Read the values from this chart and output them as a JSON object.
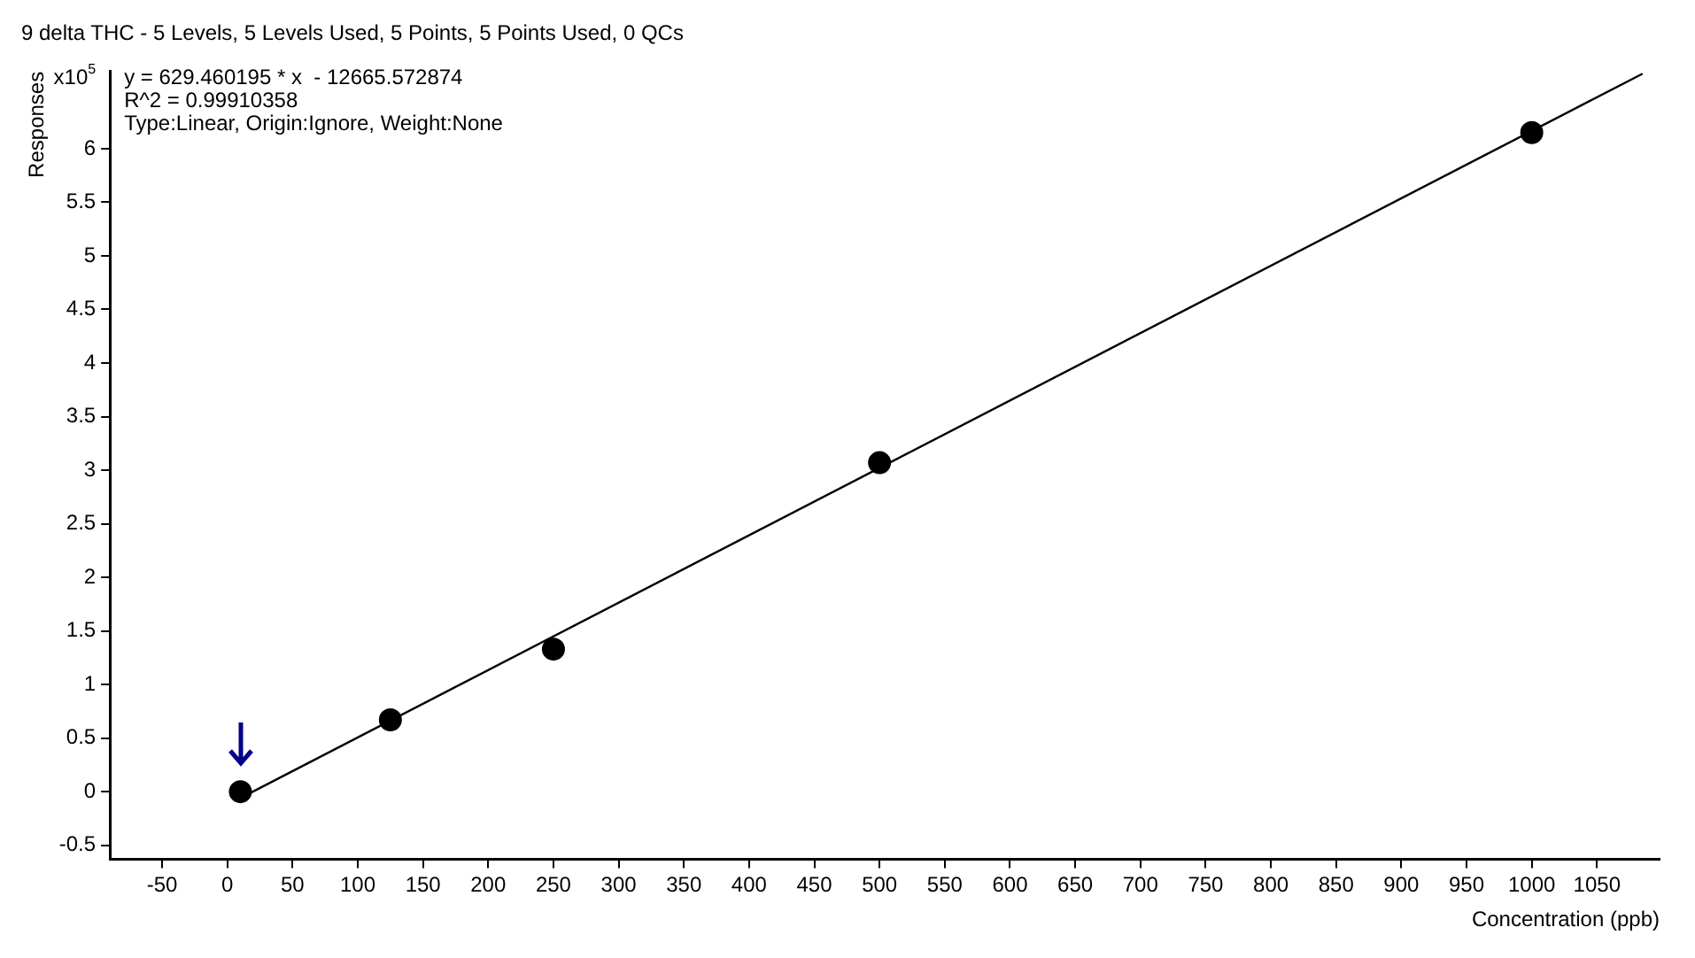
{
  "chart_data": {
    "type": "scatter",
    "title": "9 delta THC - 5 Levels, 5 Levels Used, 5 Points, 5 Points Used, 0 QCs",
    "xlabel": "Concentration (ppb)",
    "ylabel": "Responses",
    "annotations": [
      "x10$^{5}$",
      "y = 629.460195 * x  - 12665.572874",
      "R^2 = 0.99910358",
      "Type:Linear, Origin:Ignore, Weight:None"
    ],
    "series": [
      {
        "type": "scatter",
        "color": "#000000",
        "x": [
          10,
          125,
          250,
          500,
          1000
        ],
        "values": [
          0,
          0.67,
          1.33,
          3.07,
          6.15
        ],
        "marker": "circle"
      },
      {
        "type": "line",
        "color": "#000000",
        "x": [
          10,
          1085
        ],
        "values": [
          -0.06,
          6.7
        ],
        "marker": "none"
      }
    ],
    "xlim": [
      -90,
      1098
    ],
    "ylim": [
      -0.63,
      6.72
    ],
    "xticks": [
      -50,
      0,
      50,
      100,
      150,
      200,
      250,
      300,
      350,
      400,
      450,
      500,
      550,
      600,
      650,
      700,
      750,
      800,
      850,
      900,
      950,
      1000,
      1050
    ],
    "yticks": [
      -0.5,
      0,
      0.5,
      1,
      1.5,
      2,
      2.5,
      3,
      3.5,
      4,
      4.5,
      5,
      5.5,
      6
    ],
    "grid": false,
    "legend": false
  }
}
